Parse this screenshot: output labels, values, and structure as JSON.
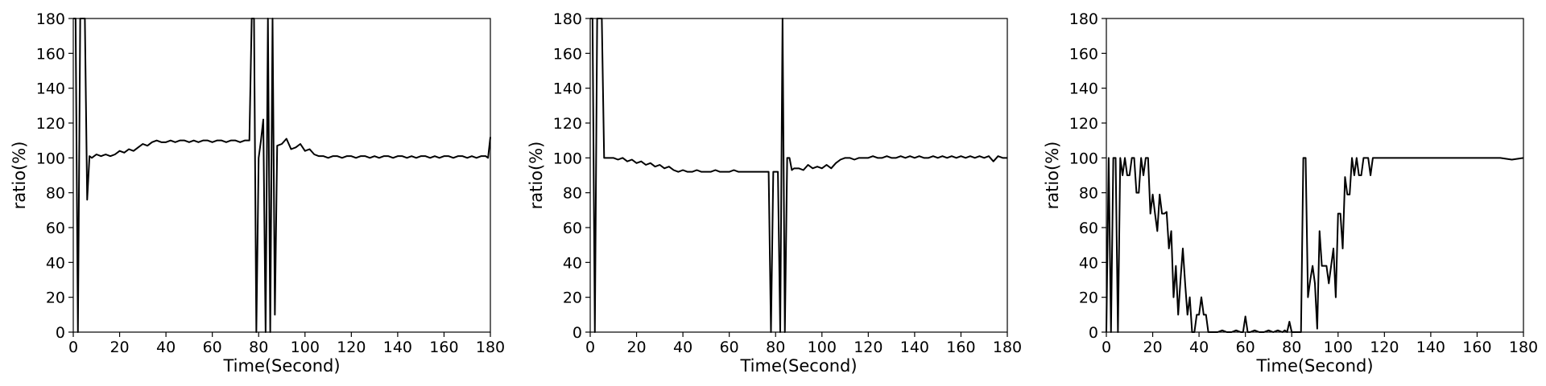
{
  "chart_data": [
    {
      "type": "line",
      "title": "",
      "xlabel": "Time(Second)",
      "ylabel": "ratio(%)",
      "xlim": [
        0,
        180
      ],
      "ylim": [
        0,
        180
      ],
      "xticks": [
        0,
        20,
        40,
        60,
        80,
        100,
        120,
        140,
        160,
        180
      ],
      "yticks": [
        0,
        20,
        40,
        60,
        80,
        100,
        120,
        140,
        160,
        180
      ],
      "grid": false,
      "series": [
        {
          "name": "ratio",
          "x": [
            0,
            1,
            2,
            3,
            4,
            5,
            6,
            7,
            8,
            10,
            12,
            14,
            16,
            18,
            20,
            22,
            24,
            26,
            28,
            30,
            32,
            34,
            36,
            38,
            40,
            42,
            44,
            46,
            48,
            50,
            52,
            54,
            56,
            58,
            60,
            62,
            64,
            66,
            68,
            70,
            72,
            74,
            76,
            77,
            78,
            79,
            80,
            81,
            82,
            83,
            84,
            85,
            86,
            87,
            88,
            90,
            92,
            94,
            96,
            98,
            100,
            102,
            104,
            106,
            108,
            110,
            112,
            114,
            116,
            118,
            120,
            122,
            124,
            126,
            128,
            130,
            132,
            134,
            136,
            138,
            140,
            142,
            144,
            146,
            148,
            150,
            152,
            154,
            156,
            158,
            160,
            162,
            164,
            166,
            168,
            170,
            172,
            174,
            176,
            178,
            179,
            180
          ],
          "y": [
            180,
            180,
            0,
            180,
            180,
            180,
            76,
            101,
            100,
            102,
            101,
            102,
            101,
            102,
            104,
            103,
            105,
            104,
            106,
            108,
            107,
            109,
            110,
            109,
            109,
            110,
            109,
            110,
            110,
            109,
            110,
            109,
            110,
            110,
            109,
            110,
            110,
            109,
            110,
            110,
            109,
            110,
            110,
            180,
            180,
            0,
            100,
            110,
            122,
            0,
            180,
            0,
            180,
            10,
            107,
            108,
            111,
            105,
            106,
            108,
            104,
            105,
            102,
            101,
            101,
            100,
            101,
            101,
            100,
            101,
            101,
            100,
            101,
            101,
            100,
            101,
            100,
            101,
            101,
            100,
            101,
            101,
            100,
            101,
            100,
            101,
            101,
            100,
            101,
            100,
            101,
            101,
            100,
            101,
            101,
            100,
            101,
            100,
            101,
            101,
            100,
            112
          ]
        }
      ]
    },
    {
      "type": "line",
      "title": "",
      "xlabel": "Time(Second)",
      "ylabel": "ratio(%)",
      "xlim": [
        0,
        180
      ],
      "ylim": [
        0,
        180
      ],
      "xticks": [
        0,
        20,
        40,
        60,
        80,
        100,
        120,
        140,
        160,
        180
      ],
      "yticks": [
        0,
        20,
        40,
        60,
        80,
        100,
        120,
        140,
        160,
        180
      ],
      "grid": false,
      "series": [
        {
          "name": "ratio",
          "x": [
            0,
            1,
            2,
            3,
            4,
            5,
            6,
            8,
            10,
            12,
            14,
            16,
            18,
            20,
            22,
            24,
            26,
            28,
            30,
            32,
            34,
            36,
            38,
            40,
            42,
            44,
            46,
            48,
            50,
            52,
            54,
            56,
            58,
            60,
            62,
            64,
            66,
            68,
            70,
            72,
            74,
            76,
            77,
            78,
            79,
            80,
            81,
            82,
            83,
            84,
            85,
            86,
            87,
            88,
            90,
            92,
            94,
            96,
            98,
            100,
            102,
            104,
            106,
            108,
            110,
            112,
            114,
            116,
            118,
            120,
            122,
            124,
            126,
            128,
            130,
            132,
            134,
            136,
            138,
            140,
            142,
            144,
            146,
            148,
            150,
            152,
            154,
            156,
            158,
            160,
            162,
            164,
            166,
            168,
            170,
            172,
            174,
            176,
            178,
            180
          ],
          "y": [
            180,
            180,
            0,
            180,
            180,
            180,
            100,
            100,
            100,
            99,
            100,
            98,
            99,
            97,
            98,
            96,
            97,
            95,
            96,
            94,
            95,
            93,
            92,
            93,
            92,
            92,
            93,
            92,
            92,
            92,
            93,
            92,
            92,
            92,
            93,
            92,
            92,
            92,
            92,
            92,
            92,
            92,
            92,
            0,
            92,
            92,
            92,
            0,
            180,
            0,
            100,
            100,
            93,
            94,
            94,
            93,
            96,
            94,
            95,
            94,
            96,
            94,
            97,
            99,
            100,
            100,
            99,
            100,
            100,
            100,
            101,
            100,
            100,
            101,
            100,
            100,
            101,
            100,
            101,
            100,
            101,
            100,
            100,
            101,
            100,
            101,
            100,
            101,
            100,
            101,
            100,
            101,
            100,
            101,
            100,
            101,
            98,
            101,
            100,
            100
          ]
        }
      ]
    },
    {
      "type": "line",
      "title": "",
      "xlabel": "Time(Second)",
      "ylabel": "ratio(%)",
      "xlim": [
        0,
        180
      ],
      "ylim": [
        0,
        180
      ],
      "xticks": [
        0,
        20,
        40,
        60,
        80,
        100,
        120,
        140,
        160,
        180
      ],
      "yticks": [
        0,
        20,
        40,
        60,
        80,
        100,
        120,
        140,
        160,
        180
      ],
      "grid": false,
      "series": [
        {
          "name": "ratio",
          "x": [
            0,
            1,
            2,
            3,
            4,
            5,
            6,
            7,
            8,
            9,
            10,
            11,
            12,
            13,
            14,
            15,
            16,
            17,
            18,
            19,
            20,
            21,
            22,
            23,
            24,
            25,
            26,
            27,
            28,
            29,
            30,
            31,
            32,
            33,
            34,
            35,
            36,
            37,
            38,
            39,
            40,
            41,
            42,
            43,
            44,
            46,
            48,
            50,
            52,
            54,
            56,
            58,
            59,
            60,
            61,
            62,
            64,
            66,
            68,
            70,
            72,
            74,
            76,
            77,
            78,
            79,
            80,
            82,
            84,
            85,
            86,
            87,
            88,
            89,
            90,
            91,
            92,
            93,
            94,
            95,
            96,
            97,
            98,
            99,
            100,
            101,
            102,
            103,
            104,
            105,
            106,
            107,
            108,
            109,
            110,
            111,
            112,
            113,
            114,
            115,
            116,
            118,
            120,
            130,
            140,
            150,
            160,
            170,
            175,
            180
          ],
          "y": [
            0,
            100,
            0,
            100,
            100,
            0,
            100,
            90,
            100,
            90,
            90,
            100,
            100,
            80,
            80,
            100,
            90,
            100,
            100,
            68,
            79,
            68,
            58,
            79,
            68,
            68,
            69,
            48,
            58,
            20,
            38,
            10,
            30,
            48,
            28,
            10,
            20,
            0,
            0,
            10,
            10,
            20,
            10,
            10,
            0,
            0,
            0,
            1,
            0,
            0,
            1,
            0,
            0,
            9,
            0,
            0,
            1,
            0,
            0,
            1,
            0,
            1,
            0,
            1,
            0,
            6,
            0,
            0,
            0,
            100,
            100,
            20,
            30,
            38,
            28,
            2,
            58,
            38,
            38,
            38,
            28,
            38,
            48,
            20,
            68,
            68,
            48,
            89,
            79,
            79,
            100,
            90,
            100,
            90,
            90,
            100,
            100,
            100,
            90,
            100,
            100,
            100,
            100,
            100,
            100,
            100,
            100,
            100,
            99,
            100
          ]
        }
      ]
    }
  ]
}
